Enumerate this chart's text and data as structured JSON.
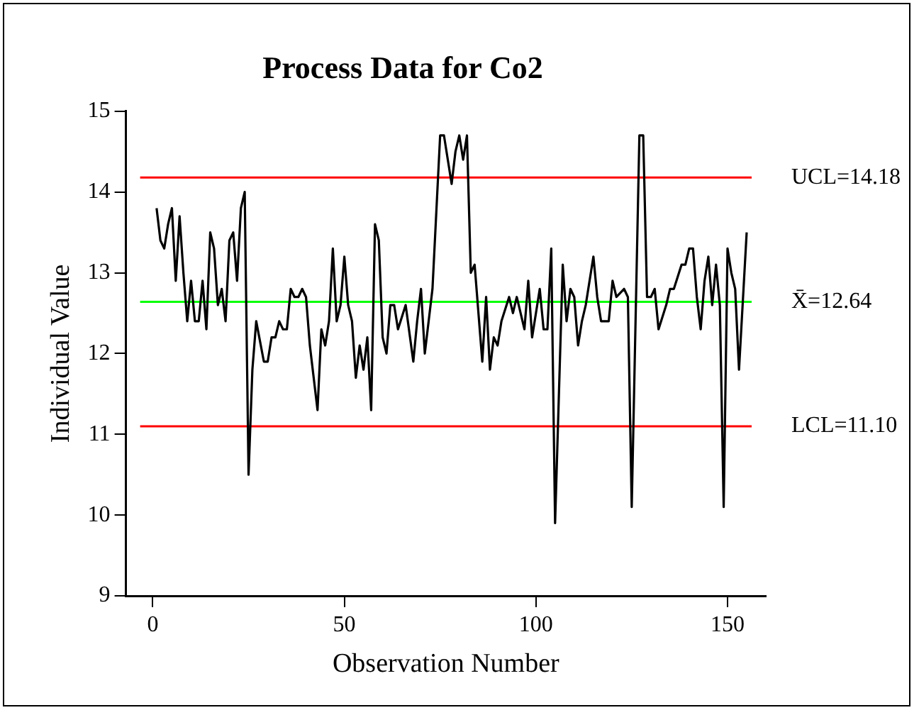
{
  "chart_data": {
    "type": "line",
    "title": "Process Data for Co2",
    "xlabel": "Observation Number",
    "ylabel": "Individual Value",
    "xlim": [
      -7,
      160
    ],
    "xticks": [
      0,
      50,
      100,
      150
    ],
    "ylim": [
      9,
      15
    ],
    "yticks": [
      9,
      10,
      11,
      12,
      13,
      14,
      15
    ],
    "grid": false,
    "legend": false,
    "marker": "none",
    "line_style": "solid",
    "series": [
      {
        "color": "#000000",
        "x": [
          1,
          2,
          3,
          4,
          5,
          6,
          7,
          8,
          9,
          10,
          11,
          12,
          13,
          14,
          15,
          16,
          17,
          18,
          19,
          20,
          21,
          22,
          23,
          24,
          25,
          26,
          27,
          29,
          30,
          31,
          32,
          33,
          34,
          35,
          36,
          37,
          38,
          39,
          40,
          41,
          43,
          44,
          45,
          46,
          47,
          48,
          49,
          50,
          51,
          52,
          53,
          54,
          55,
          56,
          57,
          58,
          59,
          60,
          61,
          62,
          63,
          64,
          66,
          68,
          69,
          70,
          71,
          73,
          75,
          76,
          78,
          79,
          80,
          81,
          82,
          83,
          84,
          86,
          87,
          88,
          89,
          90,
          91,
          93,
          94,
          95,
          97,
          98,
          99,
          101,
          102,
          103,
          104,
          105,
          107,
          108,
          109,
          110,
          111,
          112,
          113,
          115,
          116,
          117,
          119,
          120,
          121,
          123,
          124,
          125,
          127,
          128,
          129,
          130,
          131,
          132,
          134,
          135,
          136,
          138,
          139,
          140,
          141,
          142,
          143,
          144,
          145,
          146,
          147,
          148,
          149,
          150,
          151,
          152,
          153,
          155
        ],
        "values": [
          13.8,
          13.4,
          13.3,
          13.6,
          13.8,
          12.9,
          13.7,
          13.0,
          12.4,
          12.9,
          12.4,
          12.4,
          12.9,
          12.3,
          13.5,
          13.3,
          12.6,
          12.8,
          12.4,
          13.4,
          13.5,
          12.9,
          13.8,
          14.0,
          10.5,
          11.8,
          12.4,
          11.9,
          11.9,
          12.2,
          12.2,
          12.4,
          12.3,
          12.3,
          12.8,
          12.7,
          12.7,
          12.8,
          12.7,
          12.1,
          11.3,
          12.3,
          12.1,
          12.4,
          13.3,
          12.4,
          12.6,
          13.2,
          12.6,
          12.4,
          11.7,
          12.1,
          11.8,
          12.2,
          11.3,
          13.6,
          13.4,
          12.2,
          12.0,
          12.6,
          12.6,
          12.3,
          12.6,
          11.9,
          12.4,
          12.8,
          12.0,
          12.8,
          14.7,
          14.7,
          14.1,
          14.5,
          14.7,
          14.4,
          14.7,
          13.0,
          13.1,
          11.9,
          12.7,
          11.8,
          12.2,
          12.1,
          12.4,
          12.7,
          12.5,
          12.7,
          12.3,
          12.9,
          12.2,
          12.8,
          12.3,
          12.3,
          13.3,
          9.9,
          13.1,
          12.4,
          12.8,
          12.7,
          12.1,
          12.4,
          12.6,
          13.2,
          12.7,
          12.4,
          12.4,
          12.9,
          12.7,
          12.8,
          12.7,
          10.1,
          14.7,
          14.7,
          12.7,
          12.7,
          12.8,
          12.3,
          12.6,
          12.8,
          12.8,
          13.1,
          13.1,
          13.3,
          13.3,
          12.7,
          12.3,
          12.9,
          13.2,
          12.6,
          13.1,
          12.6,
          10.1,
          13.3,
          13.0,
          12.8,
          11.8,
          13.5
        ]
      }
    ],
    "ref_lines": [
      {
        "axis": "y",
        "value": 14.18,
        "label": "UCL=14.18",
        "color": "#ff0000"
      },
      {
        "axis": "y",
        "value": 12.64,
        "label": "X̄=12.64",
        "color": "#00ff00"
      },
      {
        "axis": "y",
        "value": 11.1,
        "label": "LCL=11.10",
        "color": "#ff0000"
      }
    ]
  }
}
